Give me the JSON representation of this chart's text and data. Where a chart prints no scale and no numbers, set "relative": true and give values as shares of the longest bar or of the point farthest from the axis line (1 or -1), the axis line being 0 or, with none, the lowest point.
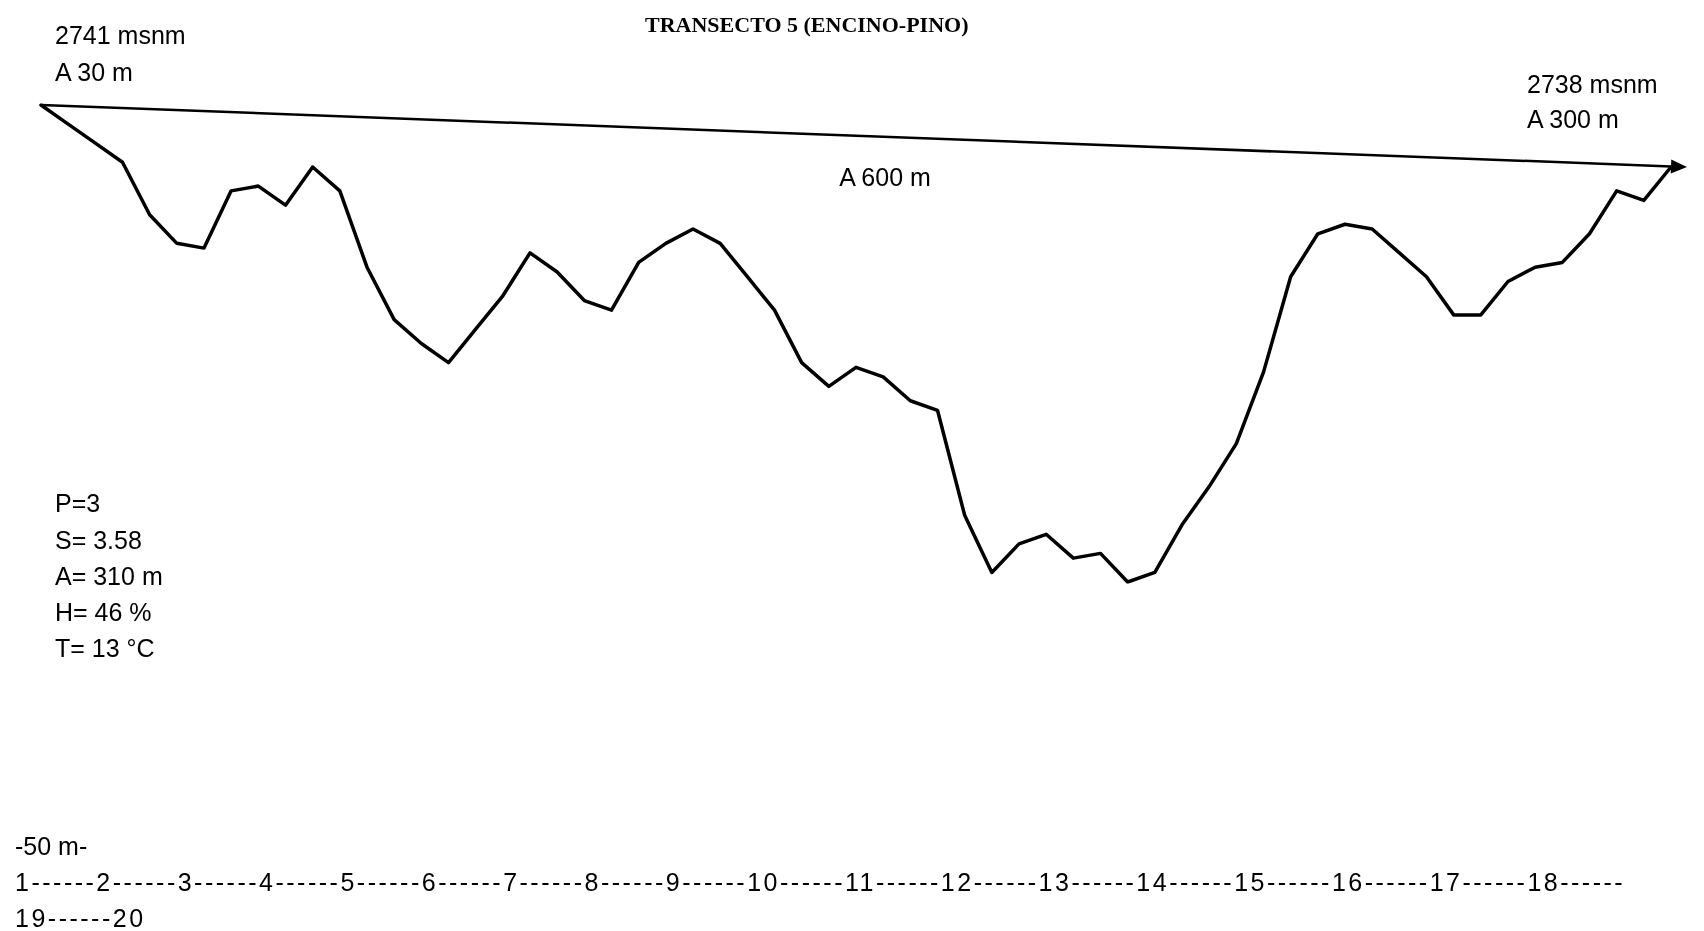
{
  "chart_data": {
    "type": "line",
    "title": "TRANSECTO 5 (ENCINO-PINO)",
    "relative": true,
    "marker": "none",
    "line_style": "solid",
    "categories": [
      null,
      null,
      null,
      null,
      null,
      null,
      null,
      null,
      null,
      null,
      null,
      null,
      null,
      null,
      null,
      null,
      null,
      null,
      null,
      null,
      null,
      null,
      null,
      null,
      null,
      null,
      null,
      null,
      null,
      null,
      null,
      null,
      null,
      null,
      null,
      null,
      null,
      null,
      null,
      null,
      null,
      null,
      null,
      null,
      null,
      null,
      null,
      null,
      null,
      null,
      null,
      null,
      null,
      null,
      null,
      null,
      null,
      null,
      null,
      null,
      null
    ],
    "series": [
      {
        "color": "#000000",
        "values": [
          1.0,
          0.96,
          0.92,
          0.88,
          0.77,
          0.71,
          0.7,
          0.82,
          0.83,
          0.79,
          0.87,
          0.82,
          0.66,
          0.55,
          0.5,
          0.46,
          0.53,
          0.6,
          0.69,
          0.65,
          0.59,
          0.57,
          0.67,
          0.71,
          0.74,
          0.71,
          0.64,
          0.57,
          0.46,
          0.41,
          0.45,
          0.43,
          0.38,
          0.36,
          0.14,
          0.02,
          0.08,
          0.1,
          0.05,
          0.06,
          0.0,
          0.02,
          0.12,
          0.2,
          0.29,
          0.44,
          0.64,
          0.73,
          0.75,
          0.74,
          0.69,
          0.64,
          0.56,
          0.56,
          0.63,
          0.66,
          0.67,
          0.73,
          0.82,
          0.8,
          0.87
        ]
      }
    ],
    "annotations": [
      "2741 msnm",
      "A 30 m",
      "2738 msnm",
      "A 300 m",
      "A 600 m",
      "P=3",
      "S= 3.58",
      "A= 310 m",
      "H= 46 %",
      "T= 13 °C",
      "-50 m-",
      "1------2------3------4------5------6------7------8------9------10------11------12------13------14------15------16------17------18------",
      "19------20"
    ]
  }
}
